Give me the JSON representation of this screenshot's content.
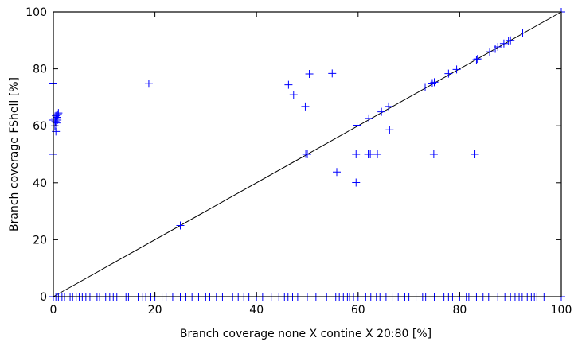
{
  "chart_data": {
    "type": "scatter",
    "xlabel": "Branch coverage none X contine X 20:80 [%]",
    "ylabel": "Branch coverage FShell [%]",
    "xlim": [
      0,
      100
    ],
    "ylim": [
      0,
      100
    ],
    "x_ticks": [
      "0",
      "20",
      "40",
      "60",
      "80",
      "100"
    ],
    "y_ticks": [
      "0",
      "20",
      "40",
      "60",
      "80",
      "100"
    ],
    "grid": false,
    "reference_line": {
      "from": [
        0,
        0
      ],
      "to": [
        100,
        100
      ],
      "color": "#000000"
    },
    "marker": "plus",
    "series": [
      {
        "color": "#0000ff",
        "points": [
          [
            0,
            75
          ],
          [
            0,
            50
          ],
          [
            0,
            62
          ],
          [
            0.3,
            60
          ],
          [
            0.5,
            58
          ],
          [
            0.4,
            61.5
          ],
          [
            0.6,
            62.5
          ],
          [
            0.7,
            63
          ],
          [
            0.8,
            62
          ],
          [
            0.9,
            64
          ],
          [
            0.5,
            63.5
          ],
          [
            0.3,
            62.5
          ],
          [
            0.6,
            61
          ],
          [
            1,
            64.5
          ],
          [
            18.8,
            74.8
          ],
          [
            46.3,
            74.4
          ],
          [
            47.3,
            70.9
          ],
          [
            49.6,
            66.8
          ],
          [
            50.4,
            78.2
          ],
          [
            54.9,
            78.4
          ],
          [
            55.8,
            43.8
          ],
          [
            59.6,
            40.1
          ],
          [
            59.6,
            50
          ],
          [
            59.8,
            60.2
          ],
          [
            62,
            50
          ],
          [
            62.1,
            62.6
          ],
          [
            62.4,
            50
          ],
          [
            63.8,
            50
          ],
          [
            64.6,
            64.9
          ],
          [
            66,
            66.8
          ],
          [
            66.2,
            58.6
          ],
          [
            73.2,
            73.6
          ],
          [
            74.6,
            75
          ],
          [
            74.9,
            50
          ],
          [
            75,
            75.3
          ],
          [
            77.8,
            78.3
          ],
          [
            79.4,
            79.8
          ],
          [
            83,
            50
          ],
          [
            83.3,
            83.2
          ],
          [
            83.5,
            83.5
          ],
          [
            85.9,
            86
          ],
          [
            87,
            87
          ],
          [
            87.5,
            87.7
          ],
          [
            88.7,
            88.9
          ],
          [
            89.6,
            89.8
          ],
          [
            90,
            90
          ],
          [
            92.4,
            92.6
          ],
          [
            100,
            100
          ],
          [
            25,
            25
          ],
          [
            50,
            50
          ],
          [
            49.7,
            50.1
          ],
          [
            0,
            0
          ],
          [
            0.5,
            0
          ],
          [
            1,
            0
          ],
          [
            1.7,
            0
          ],
          [
            2.2,
            0
          ],
          [
            2.9,
            0
          ],
          [
            3.3,
            0
          ],
          [
            3.8,
            0
          ],
          [
            4.5,
            0
          ],
          [
            5.1,
            0
          ],
          [
            5.7,
            0
          ],
          [
            6.4,
            0
          ],
          [
            7.2,
            0
          ],
          [
            8.6,
            0
          ],
          [
            9.1,
            0
          ],
          [
            10.3,
            0
          ],
          [
            11.1,
            0
          ],
          [
            11.8,
            0
          ],
          [
            12.5,
            0
          ],
          [
            14.3,
            0
          ],
          [
            14.8,
            0
          ],
          [
            16.7,
            0
          ],
          [
            17.6,
            0
          ],
          [
            18.2,
            0
          ],
          [
            19.2,
            0
          ],
          [
            20,
            0
          ],
          [
            21.4,
            0
          ],
          [
            22.2,
            0
          ],
          [
            23.5,
            0
          ],
          [
            25,
            0
          ],
          [
            26.1,
            0
          ],
          [
            27.3,
            0
          ],
          [
            28.6,
            0
          ],
          [
            30,
            0
          ],
          [
            30.8,
            0
          ],
          [
            32.1,
            0
          ],
          [
            33.3,
            0
          ],
          [
            35.3,
            0
          ],
          [
            36.4,
            0
          ],
          [
            37.5,
            0
          ],
          [
            38.5,
            0
          ],
          [
            40,
            0
          ],
          [
            41.2,
            0
          ],
          [
            42.9,
            0
          ],
          [
            44.4,
            0
          ],
          [
            45.5,
            0
          ],
          [
            46.2,
            0
          ],
          [
            47.1,
            0
          ],
          [
            48.1,
            0
          ],
          [
            50,
            0
          ],
          [
            51.7,
            0
          ],
          [
            53.8,
            0
          ],
          [
            55.6,
            0
          ],
          [
            56.3,
            0
          ],
          [
            57.1,
            0
          ],
          [
            57.9,
            0
          ],
          [
            58.3,
            0
          ],
          [
            59.1,
            0
          ],
          [
            60,
            0
          ],
          [
            61.5,
            0
          ],
          [
            62.5,
            0
          ],
          [
            63.6,
            0
          ],
          [
            64.3,
            0
          ],
          [
            65.5,
            0
          ],
          [
            66.7,
            0
          ],
          [
            67.9,
            0
          ],
          [
            69.2,
            0
          ],
          [
            70,
            0
          ],
          [
            71.4,
            0
          ],
          [
            72.7,
            0
          ],
          [
            73.3,
            0
          ],
          [
            75,
            0
          ],
          [
            76.9,
            0
          ],
          [
            77.8,
            0
          ],
          [
            78.6,
            0
          ],
          [
            80,
            0
          ],
          [
            81.3,
            0
          ],
          [
            81.8,
            0
          ],
          [
            83.3,
            0
          ],
          [
            84.6,
            0
          ],
          [
            85.7,
            0
          ],
          [
            87.5,
            0
          ],
          [
            88.9,
            0
          ],
          [
            90,
            0
          ],
          [
            90.9,
            0
          ],
          [
            91.7,
            0
          ],
          [
            92.3,
            0
          ],
          [
            93.3,
            0
          ],
          [
            94.1,
            0
          ],
          [
            94.7,
            0
          ],
          [
            95.2,
            0
          ],
          [
            96.6,
            0
          ],
          [
            100,
            0
          ]
        ]
      }
    ]
  }
}
